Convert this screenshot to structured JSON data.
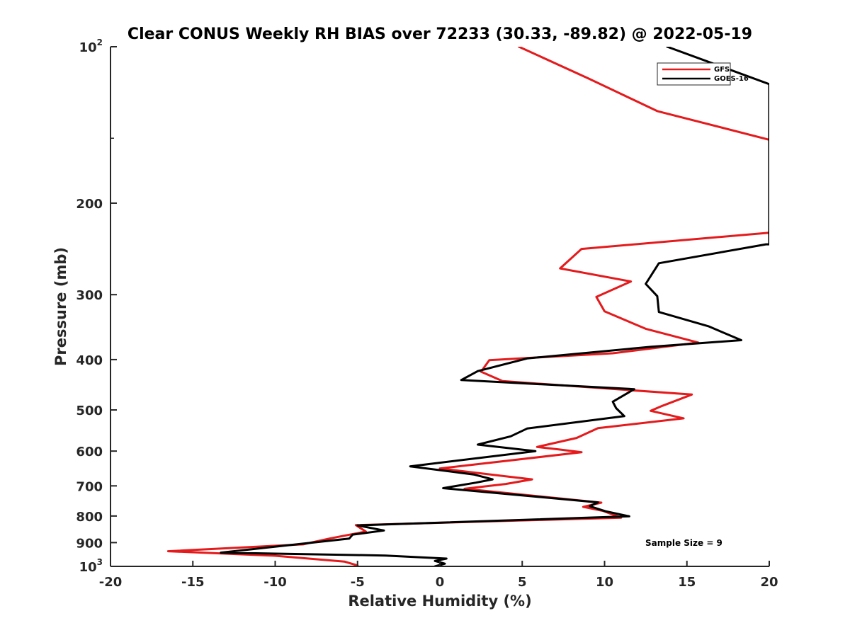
{
  "chart_data": {
    "type": "line",
    "title": "Clear CONUS Weekly RH BIAS over 72233 (30.33, -89.82) @ 2022-05-19",
    "xlabel": "Relative Humidity (%)",
    "ylabel": "Pressure (mb)",
    "xlim": [
      -20,
      20
    ],
    "ylim": [
      100,
      1000
    ],
    "y_scale": "log",
    "y_reversed": true,
    "grid": false,
    "legend_position": "top-right",
    "x_ticks": [
      {
        "value": -20,
        "label": "-20"
      },
      {
        "value": -15,
        "label": "-15"
      },
      {
        "value": -10,
        "label": "-10"
      },
      {
        "value": -5,
        "label": "-5"
      },
      {
        "value": 0,
        "label": "0"
      },
      {
        "value": 5,
        "label": "5"
      },
      {
        "value": 10,
        "label": "10"
      },
      {
        "value": 15,
        "label": "15"
      },
      {
        "value": 20,
        "label": "20"
      }
    ],
    "y_ticks": [
      {
        "value": 100,
        "base": "10",
        "exp": "2"
      },
      {
        "value": 200,
        "label": "200"
      },
      {
        "value": 300,
        "label": "300"
      },
      {
        "value": 400,
        "label": "400"
      },
      {
        "value": 500,
        "label": "500"
      },
      {
        "value": 600,
        "label": "600"
      },
      {
        "value": 700,
        "label": "700"
      },
      {
        "value": 800,
        "label": "800"
      },
      {
        "value": 900,
        "label": "900"
      },
      {
        "value": 1000,
        "base": "10",
        "exp": "3"
      }
    ],
    "annotation": "Sample Size = 9",
    "series": [
      {
        "name": "GFS",
        "color": "#e41a1c",
        "points": [
          [
            4.8,
            100
          ],
          [
            9.0,
            115
          ],
          [
            13.2,
            133
          ],
          [
            20.0,
            151
          ],
          [
            20.0,
            228
          ],
          [
            8.6,
            245
          ],
          [
            7.3,
            267
          ],
          [
            11.6,
            283
          ],
          [
            9.5,
            303
          ],
          [
            10.0,
            323
          ],
          [
            12.5,
            349
          ],
          [
            15.7,
            371
          ],
          [
            10.5,
            389
          ],
          [
            3.0,
            401
          ],
          [
            2.5,
            422
          ],
          [
            3.8,
            440
          ],
          [
            15.3,
            467
          ],
          [
            13.5,
            491
          ],
          [
            12.8,
            502
          ],
          [
            14.8,
            519
          ],
          [
            9.6,
            542
          ],
          [
            8.3,
            566
          ],
          [
            5.9,
            589
          ],
          [
            7.3,
            596
          ],
          [
            8.6,
            603
          ],
          [
            0.0,
            648
          ],
          [
            3.8,
            670
          ],
          [
            5.6,
            680
          ],
          [
            4.0,
            694
          ],
          [
            1.5,
            709
          ],
          [
            9.8,
            754
          ],
          [
            8.7,
            768
          ],
          [
            9.9,
            782
          ],
          [
            11.0,
            806
          ],
          [
            -5.1,
            833
          ],
          [
            -4.5,
            857
          ],
          [
            -6.7,
            884
          ],
          [
            -8.3,
            907
          ],
          [
            -16.5,
            935
          ],
          [
            -10.0,
            954
          ],
          [
            -5.8,
            979
          ],
          [
            -5.0,
            996
          ]
        ]
      },
      {
        "name": "GOES-16",
        "color": "#000000",
        "points": [
          [
            13.8,
            100
          ],
          [
            20.0,
            118
          ],
          [
            20.0,
            240
          ],
          [
            19.8,
            240
          ],
          [
            13.3,
            261
          ],
          [
            12.5,
            286
          ],
          [
            13.2,
            302
          ],
          [
            13.3,
            324
          ],
          [
            16.3,
            345
          ],
          [
            18.3,
            367
          ],
          [
            12.8,
            378
          ],
          [
            5.3,
            398
          ],
          [
            2.3,
            421
          ],
          [
            1.3,
            438
          ],
          [
            11.8,
            456
          ],
          [
            10.5,
            482
          ],
          [
            10.7,
            496
          ],
          [
            11.2,
            514
          ],
          [
            5.3,
            543
          ],
          [
            4.3,
            562
          ],
          [
            2.3,
            583
          ],
          [
            5.8,
            600
          ],
          [
            -1.8,
            642
          ],
          [
            2.1,
            666
          ],
          [
            3.2,
            680
          ],
          [
            2.2,
            690
          ],
          [
            0.2,
            707
          ],
          [
            9.6,
            753
          ],
          [
            9.1,
            766
          ],
          [
            10.1,
            784
          ],
          [
            11.5,
            801
          ],
          [
            -5.0,
            834
          ],
          [
            -3.4,
            853
          ],
          [
            -5.3,
            869
          ],
          [
            -5.5,
            884
          ],
          [
            -13.3,
            941
          ],
          [
            -3.3,
            953
          ],
          [
            0.4,
            966
          ],
          [
            -0.3,
            976
          ],
          [
            0.3,
            988
          ],
          [
            -0.3,
            1000
          ]
        ]
      }
    ]
  }
}
